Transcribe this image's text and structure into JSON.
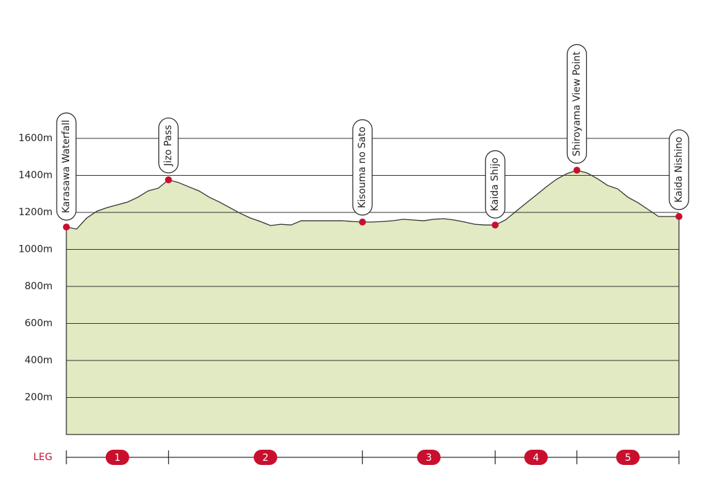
{
  "chart_data": {
    "type": "area",
    "categories": [
      "Karasawa Waterfall",
      null,
      null,
      null,
      null,
      null,
      null,
      null,
      null,
      null,
      "Jizo Pass",
      null,
      null,
      null,
      null,
      null,
      null,
      null,
      null,
      null,
      null,
      null,
      null,
      null,
      null,
      null,
      null,
      null,
      null,
      "Kisouma no Sato",
      null,
      null,
      null,
      null,
      null,
      null,
      null,
      null,
      null,
      null,
      null,
      null,
      "Kaida Shijo",
      null,
      null,
      null,
      null,
      null,
      null,
      null,
      "Shiroyama View Point",
      null,
      null,
      null,
      null,
      null,
      null,
      null,
      null,
      null,
      "Kaida Nishino"
    ],
    "values": [
      1121,
      1110,
      1170,
      1207,
      1226,
      1241,
      1256,
      1282,
      1316,
      1331,
      1376,
      1361,
      1338,
      1316,
      1282,
      1256,
      1226,
      1196,
      1170,
      1151,
      1129,
      1136,
      1132,
      1155,
      1155,
      1155,
      1155,
      1155,
      1151,
      1148,
      1148,
      1151,
      1155,
      1163,
      1159,
      1155,
      1163,
      1166,
      1159,
      1148,
      1136,
      1132,
      1132,
      1159,
      1204,
      1249,
      1293,
      1338,
      1379,
      1409,
      1428,
      1413,
      1383,
      1346,
      1327,
      1282,
      1252,
      1215,
      1178,
      1178,
      1178
    ],
    "color": "#e2eac3",
    "line_color": "#333333",
    "marker_color": "#c8102e",
    "ylim": [
      0,
      1600
    ],
    "yticks": [
      {
        "value": 200,
        "label": "200m"
      },
      {
        "value": 400,
        "label": "400m"
      },
      {
        "value": 600,
        "label": "600m"
      },
      {
        "value": 800,
        "label": "800m"
      },
      {
        "value": 1000,
        "label": "1000m"
      },
      {
        "value": 1200,
        "label": "1200m"
      },
      {
        "value": 1400,
        "label": "1400m"
      },
      {
        "value": 1600,
        "label": "1600m"
      }
    ],
    "grid": true,
    "leg_title": "LEG",
    "legs": [
      "1",
      "2",
      "3",
      "4",
      "5"
    ]
  }
}
